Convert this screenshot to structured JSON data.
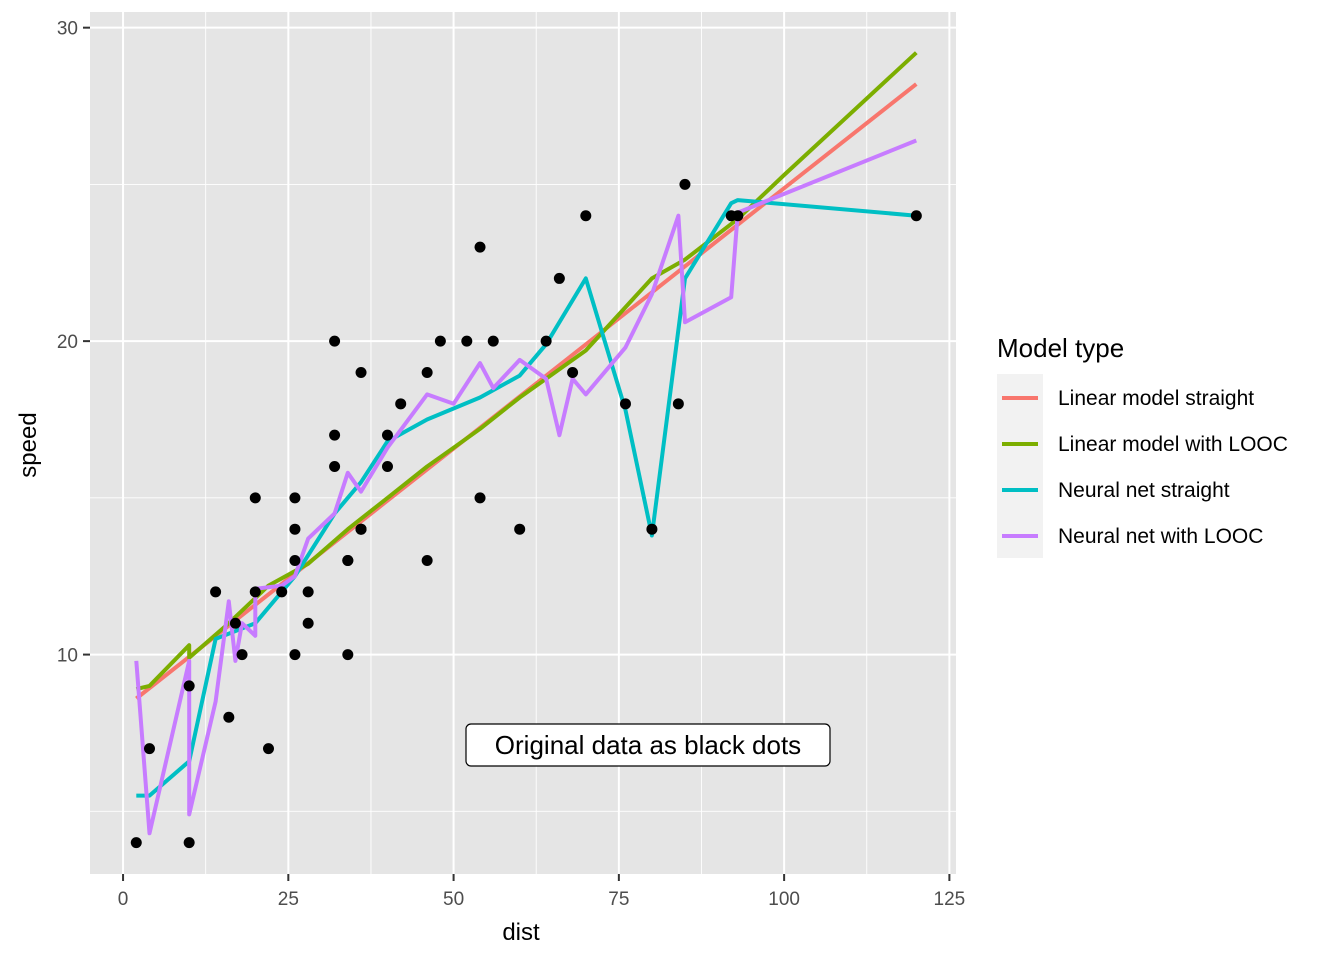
{
  "chart_data": {
    "type": "line",
    "xlabel": "dist",
    "ylabel": "speed",
    "xlim": [
      -5,
      126
    ],
    "ylim": [
      3,
      30.5
    ],
    "x_ticks": [
      0,
      25,
      50,
      75,
      100,
      125
    ],
    "y_ticks": [
      10,
      20,
      30
    ],
    "x_tick_labels": [
      "0",
      "25",
      "50",
      "75",
      "100",
      "125"
    ],
    "y_tick_labels": [
      "10",
      "20",
      "30"
    ],
    "grid": true,
    "background": "#e5e5e5",
    "legend": {
      "title": "Model type",
      "position": "right"
    },
    "annotation": "Original data as black dots",
    "points": {
      "color": "#000000",
      "x": [
        2,
        10,
        4,
        22,
        16,
        10,
        18,
        26,
        34,
        17,
        28,
        14,
        20,
        24,
        28,
        26,
        34,
        34,
        46,
        26,
        36,
        60,
        80,
        20,
        26,
        54,
        32,
        40,
        32,
        40,
        42,
        36,
        76,
        84,
        36,
        46,
        68,
        32,
        48,
        52,
        56,
        64,
        66,
        54,
        70,
        92,
        93,
        120,
        85
      ],
      "y": [
        4,
        4,
        7,
        7,
        8,
        9,
        10,
        10,
        10,
        11,
        11,
        12,
        12,
        12,
        12,
        13,
        13,
        13,
        13,
        14,
        14,
        14,
        14,
        15,
        15,
        15,
        16,
        16,
        17,
        17,
        18,
        19,
        18,
        18,
        14,
        19,
        19,
        20,
        20,
        20,
        20,
        20,
        22,
        23,
        24,
        24,
        24,
        24,
        25
      ]
    },
    "series": [
      {
        "name": "Linear model straight",
        "color": "#f8766d",
        "x": [
          2,
          120
        ],
        "y": [
          8.6,
          28.2
        ]
      },
      {
        "name": "Linear model with LOOC",
        "color": "#7cae00",
        "x": [
          2,
          4,
          10,
          10,
          16,
          22,
          28,
          34,
          40,
          46,
          50,
          54,
          60,
          66,
          70,
          80,
          85,
          93,
          100,
          120
        ],
        "y": [
          8.9,
          9.0,
          10.3,
          9.9,
          11.0,
          12.2,
          12.9,
          14.0,
          15.0,
          16.0,
          16.6,
          17.2,
          18.2,
          19.1,
          19.7,
          22.0,
          22.6,
          23.9,
          25.3,
          29.2
        ]
      },
      {
        "name": "Neural net straight",
        "color": "#00bfc4",
        "x": [
          2,
          4,
          10,
          14,
          20,
          26,
          32,
          36,
          40,
          46,
          54,
          60,
          64,
          70,
          76,
          80,
          85,
          92,
          93,
          120
        ],
        "y": [
          5.5,
          5.5,
          6.6,
          10.5,
          11.0,
          12.5,
          14.5,
          15.5,
          16.8,
          17.5,
          18.2,
          18.9,
          19.9,
          22.0,
          17.8,
          13.8,
          22.0,
          24.4,
          24.5,
          24.0
        ]
      },
      {
        "name": "Neural net with LOOC",
        "color": "#c77cff",
        "x": [
          2,
          4,
          10,
          10,
          14,
          16,
          17,
          18,
          20,
          20,
          24,
          26,
          28,
          32,
          34,
          36,
          40,
          46,
          50,
          54,
          56,
          60,
          64,
          66,
          68,
          70,
          76,
          80,
          84,
          85,
          92,
          93,
          120
        ],
        "y": [
          9.8,
          4.3,
          9.8,
          4.9,
          8.5,
          11.7,
          9.8,
          11.0,
          10.6,
          12.1,
          12.2,
          12.5,
          13.7,
          14.5,
          15.8,
          15.2,
          16.6,
          18.3,
          18.0,
          19.3,
          18.5,
          19.4,
          18.8,
          17.0,
          18.8,
          18.3,
          19.8,
          21.5,
          24.0,
          20.6,
          21.4,
          24.1,
          26.4
        ]
      }
    ]
  }
}
